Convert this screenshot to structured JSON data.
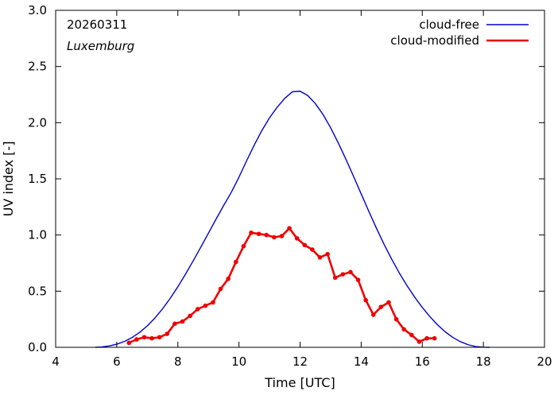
{
  "chart_data": {
    "type": "line",
    "title": "",
    "xlabel": "Time  [UTC]",
    "ylabel": "UV index  [-]",
    "xlim": [
      4,
      20
    ],
    "ylim": [
      0,
      3
    ],
    "xticks": [
      4,
      6,
      8,
      10,
      12,
      14,
      16,
      18,
      20
    ],
    "yticks": [
      0,
      0.5,
      1,
      1.5,
      2,
      2.5,
      3
    ],
    "xtick_labels": [
      "4",
      "6",
      "8",
      "10",
      "12",
      "14",
      "16",
      "18",
      "20"
    ],
    "ytick_labels": [
      "0.0",
      "0.5",
      "1.0",
      "1.5",
      "2.0",
      "2.5",
      "3.0"
    ],
    "grid": false,
    "legend_position": "top-right",
    "annotations": {
      "date": "20260311",
      "location": "Luxemburg"
    },
    "series": [
      {
        "name": "cloud-free",
        "color": "#0000cc",
        "markers": false,
        "x": [
          5.3,
          5.5,
          5.75,
          6.0,
          6.25,
          6.5,
          6.75,
          7.0,
          7.25,
          7.5,
          7.75,
          8.0,
          8.25,
          8.5,
          8.75,
          9.0,
          9.25,
          9.5,
          9.75,
          10.0,
          10.25,
          10.5,
          10.75,
          11.0,
          11.25,
          11.5,
          11.75,
          12.0,
          12.25,
          12.5,
          12.75,
          13.0,
          13.25,
          13.5,
          13.75,
          14.0,
          14.25,
          14.5,
          14.75,
          15.0,
          15.25,
          15.5,
          15.75,
          16.0,
          16.25,
          16.5,
          16.75,
          17.0,
          17.25,
          17.5,
          17.75,
          18.0,
          18.2
        ],
        "values": [
          0.0,
          0.003,
          0.012,
          0.028,
          0.052,
          0.087,
          0.133,
          0.191,
          0.261,
          0.343,
          0.436,
          0.539,
          0.651,
          0.769,
          0.891,
          1.016,
          1.141,
          1.263,
          1.38,
          1.515,
          1.66,
          1.8,
          1.93,
          2.043,
          2.137,
          2.217,
          2.275,
          2.28,
          2.242,
          2.17,
          2.073,
          1.955,
          1.82,
          1.675,
          1.522,
          1.366,
          1.211,
          1.06,
          0.917,
          0.784,
          0.661,
          0.549,
          0.447,
          0.355,
          0.273,
          0.2,
          0.138,
          0.088,
          0.05,
          0.023,
          0.007,
          0.001,
          0.0
        ]
      },
      {
        "name": "cloud-modified",
        "color": "#ee0000",
        "markers": true,
        "x": [
          6.4,
          6.65,
          6.9,
          7.15,
          7.4,
          7.65,
          7.9,
          8.15,
          8.4,
          8.65,
          8.9,
          9.15,
          9.4,
          9.65,
          9.9,
          10.15,
          10.4,
          10.65,
          10.9,
          11.15,
          11.4,
          11.65,
          11.9,
          12.15,
          12.4,
          12.65,
          12.9,
          13.15,
          13.4,
          13.65,
          13.9,
          14.15,
          14.4,
          14.65,
          14.9,
          15.15,
          15.4,
          15.65,
          15.9,
          16.15,
          16.4
        ],
        "values": [
          0.04,
          0.07,
          0.09,
          0.08,
          0.09,
          0.12,
          0.21,
          0.23,
          0.28,
          0.34,
          0.37,
          0.4,
          0.52,
          0.61,
          0.76,
          0.9,
          1.02,
          1.01,
          1.0,
          0.98,
          0.99,
          1.06,
          0.97,
          0.91,
          0.87,
          0.8,
          0.83,
          0.62,
          0.65,
          0.67,
          0.6,
          0.42,
          0.29,
          0.36,
          0.4,
          0.25,
          0.16,
          0.11,
          0.05,
          0.08,
          0.08
        ]
      }
    ]
  }
}
